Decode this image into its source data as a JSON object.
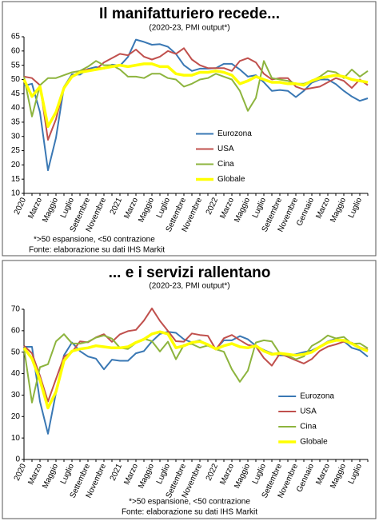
{
  "chart_data": [
    {
      "type": "line",
      "title": "Il manifatturiero recede...",
      "subtitle": "(2020-23, PMI output*)",
      "categories": [
        "2020",
        null,
        "Marzo",
        null,
        "Maggio",
        null,
        "Luglio",
        null,
        "Settembre",
        null,
        "Novembre",
        null,
        "2021",
        null,
        "Marzo",
        null,
        "Maggio",
        null,
        "Luglio",
        null,
        "Settembre",
        null,
        "Novembre",
        null,
        "2022",
        null,
        "Marzo",
        null,
        "Maggio",
        null,
        "Luglio",
        null,
        "Settembre",
        null,
        "Novembre",
        null,
        "Gennaio",
        null,
        "Marzo",
        null,
        "Maggio",
        null,
        "Luglio",
        null
      ],
      "series": [
        {
          "name": "Eurozona",
          "color": "#3a78b4",
          "values": [
            47.8,
            48.5,
            38.5,
            18.1,
            29.5,
            47.4,
            51.8,
            51.7,
            53.7,
            54.4,
            53.8,
            55.2,
            54.8,
            57.9,
            64,
            63.2,
            62.2,
            62.4,
            61.5,
            59,
            55,
            53,
            53.8,
            53.8,
            54,
            55.5,
            55.5,
            53.5,
            51,
            51.5,
            49,
            46,
            46.3,
            46,
            43.8,
            46,
            48.9,
            50,
            50,
            48.4,
            46,
            44,
            42.5,
            43.4
          ]
        },
        {
          "name": "USA",
          "color": "#c0504d",
          "values": [
            51,
            50.5,
            48,
            28.8,
            36,
            47,
            51,
            53,
            53.5,
            53.5,
            56,
            57.5,
            59,
            58.5,
            60.5,
            58,
            57,
            58,
            60,
            59,
            61,
            57,
            55,
            54,
            54,
            54,
            53,
            56.5,
            57.5,
            56,
            52,
            50,
            50.5,
            50.5,
            47.5,
            46.5,
            47,
            47.5,
            49,
            50.5,
            49.5,
            47,
            50,
            48
          ]
        },
        {
          "name": "Cina",
          "color": "#8db43e",
          "values": [
            51,
            37,
            48,
            50.5,
            50.5,
            51.5,
            52.5,
            53,
            54.5,
            56.5,
            55,
            55,
            53.5,
            51,
            51,
            50.5,
            52,
            52,
            50.5,
            50,
            47.5,
            48.5,
            50,
            50.5,
            52,
            51,
            50,
            46,
            39,
            43.5,
            56.5,
            50.5,
            50,
            49.5,
            48.5,
            48.5,
            49.5,
            51,
            53,
            52.5,
            50.5,
            53.5,
            51,
            53
          ]
        },
        {
          "name": "Globale",
          "color": "#ffff00",
          "values": [
            50,
            44,
            47.5,
            33.5,
            38.5,
            47,
            51,
            52.5,
            53,
            53.5,
            54,
            54.5,
            55,
            54.5,
            55,
            55.5,
            55.5,
            54.5,
            54.5,
            52,
            51.5,
            51.5,
            52.5,
            52.5,
            53,
            52.5,
            51.5,
            48.5,
            49.5,
            51,
            50,
            49,
            49,
            48.5,
            48.5,
            48,
            49.5,
            50.5,
            51,
            51.5,
            51,
            50,
            49.5,
            49
          ]
        }
      ],
      "ylim": [
        10,
        65
      ],
      "yticks": [
        10,
        15,
        20,
        25,
        30,
        35,
        40,
        45,
        50,
        55,
        60,
        65
      ],
      "legend_position": "lower-center",
      "footnotes": [
        "*>50 espansione, <50 contrazione",
        "Fonte: elaborazione su dati IHS Markit"
      ]
    },
    {
      "type": "line",
      "title": "... e i servizi rallentano",
      "subtitle": "(2020-23, PMI output*)",
      "categories": [
        "2020",
        null,
        "Marzo",
        null,
        "Maggio",
        null,
        "Luglio",
        null,
        "Settembre",
        null,
        "Novembre",
        null,
        "2021",
        null,
        "Marzo",
        null,
        "Maggio",
        null,
        "Luglio",
        null,
        "Settembre",
        null,
        "Novembre",
        null,
        "2022",
        null,
        "Marzo",
        null,
        "Maggio",
        null,
        "Luglio",
        null,
        "Settembre",
        null,
        "Novembre",
        null,
        "Gennaio",
        null,
        "Marzo",
        null,
        "Maggio",
        null,
        "Luglio",
        null
      ],
      "series": [
        {
          "name": "Eurozona",
          "color": "#3a78b4",
          "values": [
            52.5,
            52.5,
            27,
            12,
            31,
            48.5,
            54.5,
            50.5,
            48,
            47,
            42,
            46.5,
            46,
            46,
            49.5,
            50.5,
            55,
            58.5,
            59.5,
            59,
            56,
            54.5,
            55.5,
            53,
            51.5,
            55.5,
            55.5,
            57.5,
            56,
            53,
            51,
            49.5,
            48.5,
            48.5,
            49,
            50,
            50.8,
            52.7,
            55,
            56.2,
            55.1,
            52,
            50.9,
            47.9
          ]
        },
        {
          "name": "USA",
          "color": "#c0504d",
          "values": [
            53,
            49.5,
            39,
            27,
            37.5,
            47.9,
            50,
            55,
            54.6,
            56.9,
            58.4,
            54.8,
            58.3,
            59.8,
            60.4,
            64.7,
            70.4,
            64.6,
            59.9,
            55.1,
            54.9,
            58.7,
            58,
            57.6,
            51.2,
            56.5,
            58,
            55.6,
            53.4,
            52.7,
            47.3,
            43.7,
            49.3,
            47.8,
            46.2,
            44.7,
            46.8,
            50.6,
            52.6,
            53.6,
            54.9,
            54.4,
            52.3,
            51
          ]
        },
        {
          "name": "Cina",
          "color": "#8db43e",
          "values": [
            51.8,
            26.5,
            43,
            44.4,
            55,
            58.4,
            54.1,
            54,
            54.8,
            56.8,
            57.8,
            56.3,
            52,
            51.5,
            54.3,
            56.3,
            55.1,
            50.3,
            54.9,
            46.7,
            53.4,
            53.8,
            52.1,
            53.1,
            51.4,
            50.2,
            42,
            36.2,
            41.4,
            54.5,
            55.5,
            55,
            49.3,
            48.4,
            46.7,
            48,
            52.9,
            55,
            57.8,
            56.4,
            57.1,
            53.9,
            54.1,
            51.8
          ]
        },
        {
          "name": "Globale",
          "color": "#ffff00",
          "values": [
            52,
            47,
            37,
            24,
            31.5,
            46,
            50.5,
            51.5,
            52,
            53,
            52.5,
            52,
            52,
            52.5,
            54.5,
            56,
            58.5,
            59.5,
            58.5,
            52,
            53,
            54.5,
            55,
            53.5,
            51.5,
            53,
            54,
            52.5,
            52,
            53,
            50.5,
            49,
            49.5,
            49,
            48.5,
            49,
            50,
            52.5,
            54.5,
            55.5,
            55.5,
            54,
            52,
            50.5
          ]
        }
      ],
      "ylim": [
        0,
        70
      ],
      "yticks": [
        0,
        10,
        20,
        30,
        40,
        50,
        60,
        70
      ],
      "legend_position": "lower-right",
      "footnotes": [
        "*>50 espansione, <50 contrazione",
        "Fonte: elaborazione su dati IHS Markit"
      ]
    }
  ]
}
